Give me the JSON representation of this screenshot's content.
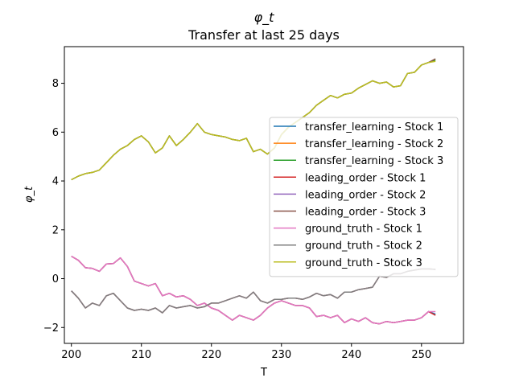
{
  "chart_data": {
    "type": "line",
    "title": "φ_t",
    "subtitle": "Transfer at last 25 days",
    "xlabel": "T",
    "ylabel": "φ_t",
    "xlim": [
      199,
      256
    ],
    "ylim": [
      -2.65,
      9.5
    ],
    "xticks": [
      200,
      210,
      220,
      230,
      240,
      250
    ],
    "yticks": [
      -2,
      0,
      2,
      4,
      6,
      8
    ],
    "grid": false,
    "legend_position": "center-right",
    "x": [
      200,
      201,
      202,
      203,
      204,
      205,
      206,
      207,
      208,
      209,
      210,
      211,
      212,
      213,
      214,
      215,
      216,
      217,
      218,
      219,
      220,
      221,
      222,
      223,
      224,
      225,
      226,
      227,
      228,
      229,
      230,
      231,
      232,
      233,
      234,
      235,
      236,
      237,
      238,
      239,
      240,
      241,
      242,
      243,
      244,
      245,
      246,
      247,
      248,
      249,
      250,
      251,
      252
    ],
    "series": [
      {
        "name": "transfer_learning - Stock 1",
        "color": "#1f77b4",
        "values": [
          0.92,
          0.75,
          0.45,
          0.42,
          0.3,
          0.6,
          0.62,
          0.85,
          0.5,
          -0.1,
          -0.2,
          -0.3,
          -0.2,
          -0.7,
          -0.6,
          -0.75,
          -0.7,
          -0.85,
          -1.1,
          -1.0,
          -1.2,
          -1.3,
          -1.5,
          -1.7,
          -1.5,
          -1.6,
          -1.7,
          -1.5,
          -1.2,
          -1.0,
          -0.9,
          -1.0,
          -1.1,
          -1.1,
          -1.2,
          -1.55,
          -1.5,
          -1.6,
          -1.5,
          -1.8,
          -1.65,
          -1.75,
          -1.6,
          -1.8,
          -1.85,
          -1.75,
          -1.8,
          -1.75,
          -1.7,
          -1.7,
          -1.6,
          -1.35,
          -1.45
        ]
      },
      {
        "name": "transfer_learning - Stock 2",
        "color": "#ff7f0e",
        "values": [
          -0.5,
          -0.8,
          -1.2,
          -1.0,
          -1.1,
          -0.7,
          -0.6,
          -0.9,
          -1.2,
          -1.3,
          -1.25,
          -1.3,
          -1.2,
          -1.4,
          -1.1,
          -1.2,
          -1.15,
          -1.1,
          -1.2,
          -1.15,
          -1.0,
          -1.0,
          -0.9,
          -0.8,
          -0.7,
          -0.8,
          -0.55,
          -0.9,
          -1.0,
          -0.85,
          -0.85,
          -0.8,
          -0.8,
          -0.85,
          -0.75,
          -0.6,
          -0.7,
          -0.65,
          -0.8,
          -0.55,
          -0.55,
          -0.45,
          -0.4,
          -0.35,
          0.1,
          0.05,
          0.2,
          0.2,
          0.3,
          0.35,
          0.4,
          0.4,
          0.38
        ]
      },
      {
        "name": "transfer_learning - Stock 3",
        "color": "#2ca02c",
        "values": [
          4.05,
          4.2,
          4.3,
          4.35,
          4.45,
          4.75,
          5.05,
          5.3,
          5.45,
          5.7,
          5.85,
          5.6,
          5.15,
          5.35,
          5.85,
          5.45,
          5.7,
          6.0,
          6.35,
          6.0,
          5.9,
          5.85,
          5.8,
          5.7,
          5.65,
          5.75,
          5.2,
          5.3,
          5.1,
          5.35,
          5.9,
          6.2,
          6.4,
          6.6,
          6.8,
          7.1,
          7.3,
          7.5,
          7.4,
          7.55,
          7.6,
          7.8,
          7.95,
          8.1,
          8.0,
          8.05,
          7.85,
          7.9,
          8.4,
          8.45,
          8.75,
          8.85,
          8.95
        ]
      },
      {
        "name": "leading_order - Stock 1",
        "color": "#d62728",
        "values": [
          0.92,
          0.75,
          0.45,
          0.42,
          0.3,
          0.6,
          0.62,
          0.85,
          0.5,
          -0.1,
          -0.2,
          -0.3,
          -0.2,
          -0.7,
          -0.6,
          -0.75,
          -0.7,
          -0.85,
          -1.1,
          -1.0,
          -1.2,
          -1.3,
          -1.5,
          -1.7,
          -1.5,
          -1.6,
          -1.7,
          -1.5,
          -1.2,
          -1.0,
          -0.9,
          -1.0,
          -1.1,
          -1.1,
          -1.2,
          -1.55,
          -1.5,
          -1.6,
          -1.5,
          -1.8,
          -1.65,
          -1.75,
          -1.6,
          -1.8,
          -1.85,
          -1.75,
          -1.8,
          -1.75,
          -1.7,
          -1.7,
          -1.6,
          -1.35,
          -1.5
        ]
      },
      {
        "name": "leading_order - Stock 2",
        "color": "#9467bd",
        "values": [
          -0.5,
          -0.8,
          -1.2,
          -1.0,
          -1.1,
          -0.7,
          -0.6,
          -0.9,
          -1.2,
          -1.3,
          -1.25,
          -1.3,
          -1.2,
          -1.4,
          -1.1,
          -1.2,
          -1.15,
          -1.1,
          -1.2,
          -1.15,
          -1.0,
          -1.0,
          -0.9,
          -0.8,
          -0.7,
          -0.8,
          -0.55,
          -0.9,
          -1.0,
          -0.85,
          -0.85,
          -0.8,
          -0.8,
          -0.85,
          -0.75,
          -0.6,
          -0.7,
          -0.65,
          -0.8,
          -0.55,
          -0.55,
          -0.45,
          -0.4,
          -0.35,
          0.1,
          0.05,
          0.2,
          0.2,
          0.3,
          0.35,
          0.4,
          0.4,
          0.38
        ]
      },
      {
        "name": "leading_order - Stock 3",
        "color": "#8c564b",
        "values": [
          4.05,
          4.2,
          4.3,
          4.35,
          4.45,
          4.75,
          5.05,
          5.3,
          5.45,
          5.7,
          5.85,
          5.6,
          5.15,
          5.35,
          5.85,
          5.45,
          5.7,
          6.0,
          6.35,
          6.0,
          5.9,
          5.85,
          5.8,
          5.7,
          5.65,
          5.75,
          5.2,
          5.3,
          5.1,
          5.35,
          5.9,
          6.2,
          6.4,
          6.6,
          6.8,
          7.1,
          7.3,
          7.5,
          7.4,
          7.55,
          7.6,
          7.8,
          7.95,
          8.1,
          8.0,
          8.05,
          7.85,
          7.9,
          8.4,
          8.45,
          8.75,
          8.85,
          9.0
        ]
      },
      {
        "name": "ground_truth - Stock 1",
        "color": "#e377c2",
        "values": [
          0.92,
          0.75,
          0.45,
          0.42,
          0.3,
          0.6,
          0.62,
          0.85,
          0.5,
          -0.1,
          -0.2,
          -0.3,
          -0.2,
          -0.7,
          -0.6,
          -0.75,
          -0.7,
          -0.85,
          -1.1,
          -1.0,
          -1.2,
          -1.3,
          -1.5,
          -1.7,
          -1.5,
          -1.6,
          -1.7,
          -1.5,
          -1.2,
          -1.0,
          -0.9,
          -1.0,
          -1.1,
          -1.1,
          -1.2,
          -1.55,
          -1.5,
          -1.6,
          -1.5,
          -1.8,
          -1.65,
          -1.75,
          -1.6,
          -1.8,
          -1.85,
          -1.75,
          -1.8,
          -1.75,
          -1.7,
          -1.7,
          -1.6,
          -1.35,
          -1.35
        ]
      },
      {
        "name": "ground_truth - Stock 2",
        "color": "#7f7f7f",
        "values": [
          -0.5,
          -0.8,
          -1.2,
          -1.0,
          -1.1,
          -0.7,
          -0.6,
          -0.9,
          -1.2,
          -1.3,
          -1.25,
          -1.3,
          -1.2,
          -1.4,
          -1.1,
          -1.2,
          -1.15,
          -1.1,
          -1.2,
          -1.15,
          -1.0,
          -1.0,
          -0.9,
          -0.8,
          -0.7,
          -0.8,
          -0.55,
          -0.9,
          -1.0,
          -0.85,
          -0.85,
          -0.8,
          -0.8,
          -0.85,
          -0.75,
          -0.6,
          -0.7,
          -0.65,
          -0.8,
          -0.55,
          -0.55,
          -0.45,
          -0.4,
          -0.35,
          0.1,
          0.05,
          0.2,
          0.2,
          0.3,
          0.35,
          0.4,
          0.4,
          0.38
        ]
      },
      {
        "name": "ground_truth - Stock 3",
        "color": "#bcbd22",
        "values": [
          4.05,
          4.2,
          4.3,
          4.35,
          4.45,
          4.75,
          5.05,
          5.3,
          5.45,
          5.7,
          5.85,
          5.6,
          5.15,
          5.35,
          5.85,
          5.45,
          5.7,
          6.0,
          6.35,
          6.0,
          5.9,
          5.85,
          5.8,
          5.7,
          5.65,
          5.75,
          5.2,
          5.3,
          5.1,
          5.35,
          5.9,
          6.2,
          6.4,
          6.6,
          6.8,
          7.1,
          7.3,
          7.5,
          7.4,
          7.55,
          7.6,
          7.8,
          7.95,
          8.1,
          8.0,
          8.05,
          7.85,
          7.9,
          8.4,
          8.45,
          8.75,
          8.85,
          8.9
        ]
      }
    ]
  }
}
